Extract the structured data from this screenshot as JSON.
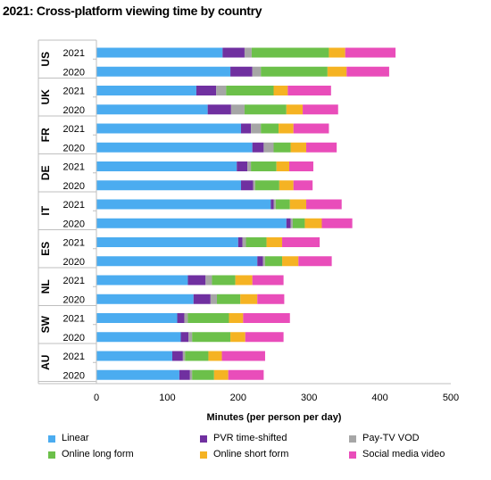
{
  "chart_data": {
    "type": "bar",
    "orientation": "horizontal",
    "stacked": true,
    "title": "2021: Cross-platform viewing time by country",
    "xlabel": "Minutes (per person per day)",
    "ylabel": "",
    "xlim": [
      0,
      500
    ],
    "x_ticks": [
      "0",
      "100",
      "200",
      "300",
      "400",
      "500"
    ],
    "grid": false,
    "legend_position": "bottom",
    "groups": [
      "US",
      "UK",
      "FR",
      "DE",
      "IT",
      "ES",
      "NL",
      "SW",
      "AU"
    ],
    "years": [
      "2021",
      "2020"
    ],
    "series": [
      {
        "name": "Linear",
        "color": "#4BACF0",
        "values": [
          178,
          189,
          141,
          157,
          204,
          220,
          198,
          204,
          246,
          268,
          200,
          227,
          129,
          137,
          114,
          119,
          107,
          117
        ]
      },
      {
        "name": "PVR time-shifted",
        "color": "#7030A0",
        "values": [
          31,
          31,
          28,
          33,
          14,
          16,
          15,
          17,
          4,
          6,
          6,
          8,
          25,
          24,
          10,
          11,
          15,
          15
        ]
      },
      {
        "name": "Pay-TV VOD",
        "color": "#A6A6A6",
        "values": [
          10,
          12,
          14,
          19,
          14,
          14,
          5,
          3,
          3,
          3,
          5,
          3,
          9,
          9,
          5,
          5,
          3,
          3
        ]
      },
      {
        "name": "Online long form",
        "color": "#6CC04A",
        "values": [
          109,
          94,
          67,
          59,
          25,
          24,
          36,
          34,
          20,
          17,
          29,
          24,
          33,
          33,
          58,
          54,
          33,
          31
        ]
      },
      {
        "name": "Online short form",
        "color": "#F5B323",
        "values": [
          23,
          27,
          20,
          23,
          21,
          22,
          18,
          20,
          23,
          24,
          22,
          23,
          24,
          24,
          20,
          21,
          19,
          20
        ]
      },
      {
        "name": "Social media video",
        "color": "#E94DBA",
        "values": [
          71,
          60,
          61,
          50,
          50,
          43,
          34,
          27,
          50,
          43,
          53,
          47,
          44,
          38,
          66,
          54,
          61,
          50
        ]
      }
    ]
  }
}
